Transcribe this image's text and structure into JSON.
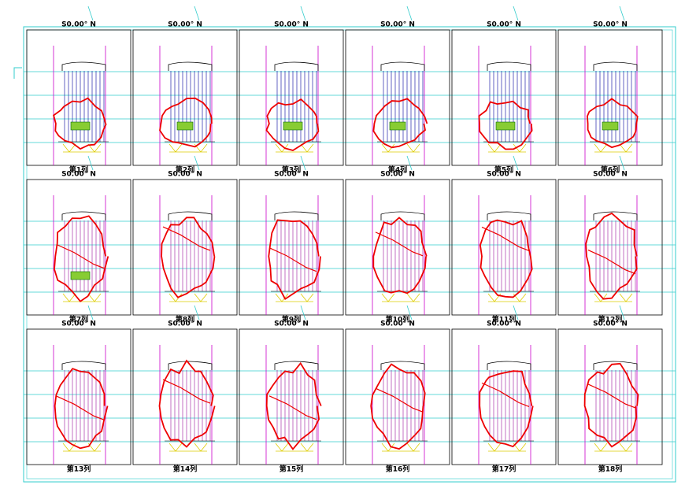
{
  "panels": [
    {
      "header": "S0.00°  N",
      "label": "第1列"
    },
    {
      "header": "S0.00°  N",
      "label": "第2列"
    },
    {
      "header": "S0.00°  N",
      "label": "第3列"
    },
    {
      "header": "S0.00°  N",
      "label": "第4列"
    },
    {
      "header": "S0.00°  N",
      "label": "第5列"
    },
    {
      "header": "S0.00°  N",
      "label": "第6列"
    },
    {
      "header": "S0.00°  N",
      "label": "第7列"
    },
    {
      "header": "S0.00°  N",
      "label": "第8列"
    },
    {
      "header": "S0.00°  N",
      "label": "第9列"
    },
    {
      "header": "S0.00°  N",
      "label": "第10列"
    },
    {
      "header": "S0.00°  N",
      "label": "第11列"
    },
    {
      "header": "S0.00°  N",
      "label": "第12列"
    },
    {
      "header": "S0.00°  N",
      "label": "第13列"
    },
    {
      "header": "S0.00°  N",
      "label": "第14列"
    },
    {
      "header": "S0.00°  N",
      "label": "第15列"
    },
    {
      "header": "S0.00°  N",
      "label": "第16列"
    },
    {
      "header": "S0.00°  N",
      "label": "第17列"
    },
    {
      "header": "S0.00°  N",
      "label": "第18列"
    }
  ]
}
